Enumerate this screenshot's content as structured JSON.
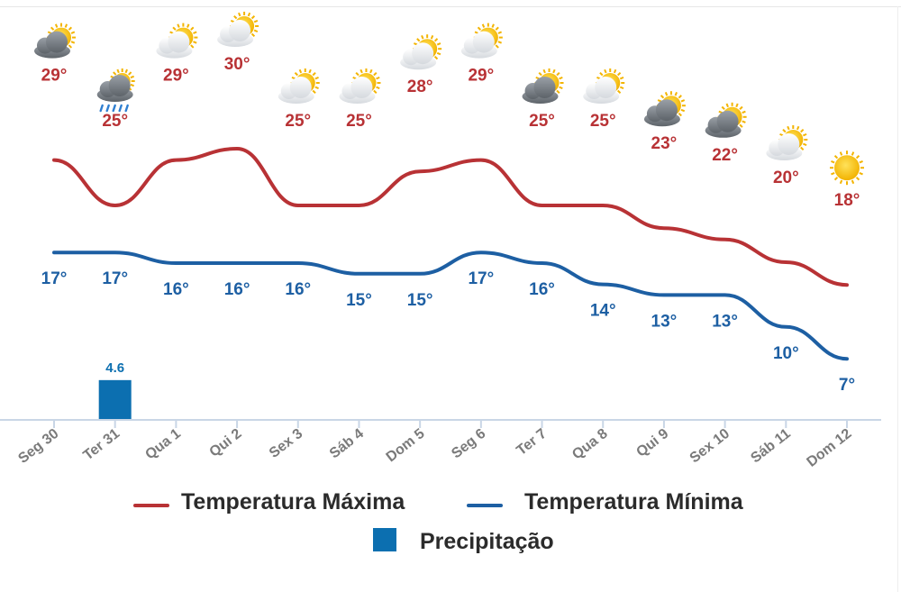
{
  "chart_data": {
    "type": "line",
    "categories": [
      "Seg 30",
      "Ter 31",
      "Qua 1",
      "Qui 2",
      "Sex 3",
      "Sáb 4",
      "Dom 5",
      "Seg 6",
      "Ter 7",
      "Qua 8",
      "Qui 9",
      "Sex 10",
      "Sáb 11",
      "Dom 12"
    ],
    "weather_icons": [
      "partly-cloudy-dark-icon",
      "rain-cloud-icon",
      "partly-cloudy-icon",
      "partly-cloudy-icon",
      "partly-cloudy-icon",
      "partly-cloudy-icon",
      "partly-cloudy-icon",
      "partly-cloudy-icon",
      "partly-cloudy-dark-icon",
      "partly-cloudy-icon",
      "partly-cloudy-dark-icon",
      "partly-cloudy-dark-icon",
      "partly-cloudy-icon",
      "sun-icon"
    ],
    "series": [
      {
        "name": "Temperatura Máxima",
        "color": "#b83235",
        "values": [
          29,
          25,
          29,
          30,
          25,
          25,
          28,
          29,
          25,
          25,
          23,
          22,
          20,
          18
        ],
        "labels": [
          "29°",
          "25°",
          "29°",
          "30°",
          "25°",
          "25°",
          "28°",
          "29°",
          "25°",
          "25°",
          "23°",
          "22°",
          "20°",
          "18°"
        ]
      },
      {
        "name": "Temperatura Mínima",
        "color": "#1d5fa3",
        "values": [
          17,
          17,
          16,
          16,
          16,
          15,
          15,
          17,
          16,
          14,
          13,
          13,
          10,
          7
        ],
        "labels": [
          "17°",
          "17°",
          "16°",
          "16°",
          "16°",
          "15°",
          "15°",
          "17°",
          "16°",
          "14°",
          "13°",
          "13°",
          "10°",
          "7°"
        ]
      },
      {
        "name": "Precipitação",
        "type": "bar",
        "color": "#0c6fb0",
        "values": [
          0,
          4.6,
          0,
          0,
          0,
          0,
          0,
          0,
          0,
          0,
          0,
          0,
          0,
          0
        ],
        "labels": [
          "",
          "4.6",
          "",
          "",
          "",
          "",
          "",
          "",
          "",
          "",
          "",
          "",
          "",
          ""
        ]
      }
    ],
    "legend": [
      "Temperatura Máxima",
      "Temperatura Mínima",
      "Precipitação"
    ],
    "legend_position": "bottom",
    "grid": false
  }
}
